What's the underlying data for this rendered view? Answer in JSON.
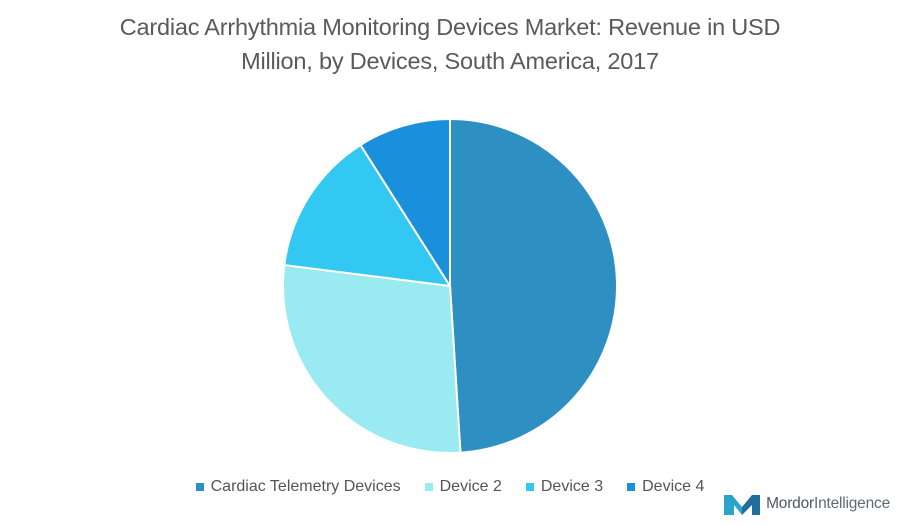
{
  "chart_data": {
    "type": "pie",
    "title_line1": "Cardiac Arrhythmia Monitoring Devices Market: Revenue in USD",
    "title_line2": "Million, by Devices, South America, 2017",
    "categories": [
      "Cardiac Telemetry Devices",
      "Device 2",
      "Device 3",
      "Device 4"
    ],
    "values": [
      49,
      28,
      14,
      9
    ],
    "colors": [
      "#2e8fc2",
      "#9aeaf2",
      "#33c8f2",
      "#1a90dd"
    ],
    "start_angle_deg": 0,
    "direction": "clockwise",
    "legend_position": "bottom"
  },
  "logo": {
    "part1": "Mordor",
    "part2": "Intelligence"
  }
}
